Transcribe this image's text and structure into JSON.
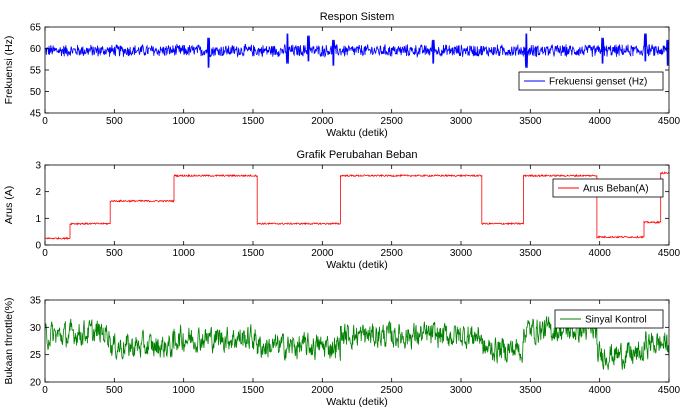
{
  "chart_data": [
    {
      "type": "line",
      "title": "Respon Sistem",
      "xlabel": "Waktu (detik)",
      "ylabel": "Frekuensi (Hz)",
      "xlim": [
        0,
        4500
      ],
      "ylim": [
        45,
        65
      ],
      "xticks": [
        "0",
        "500",
        "1000",
        "1500",
        "2000",
        "2500",
        "3000",
        "3500",
        "4000",
        "4500"
      ],
      "yticks": [
        "45",
        "50",
        "55",
        "60",
        "65"
      ],
      "legend_position": "right",
      "series": [
        {
          "name": "Frekuensi genset (Hz)",
          "color": "#0000ff",
          "style": "noisy",
          "base": 59.5,
          "noise_amplitude": 1.6,
          "spikes": [
            {
              "x": 1180,
              "low": 55.5,
              "high": 62.5
            },
            {
              "x": 1750,
              "low": 56.5,
              "high": 63.5
            },
            {
              "x": 1900,
              "low": 57,
              "high": 63
            },
            {
              "x": 2080,
              "low": 56,
              "high": 62
            },
            {
              "x": 2800,
              "low": 56.5,
              "high": 62
            },
            {
              "x": 3470,
              "low": 55.5,
              "high": 63.5
            },
            {
              "x": 4020,
              "low": 56.5,
              "high": 62.5
            },
            {
              "x": 4330,
              "low": 57,
              "high": 63.5
            },
            {
              "x": 4490,
              "low": 56,
              "high": 62
            }
          ]
        }
      ]
    },
    {
      "type": "line",
      "title": "Grafik Perubahan Beban",
      "xlabel": "Waktu (detik)",
      "ylabel": "Arus (A)",
      "xlim": [
        0,
        4500
      ],
      "ylim": [
        0,
        3
      ],
      "xticks": [
        "0",
        "500",
        "1000",
        "1500",
        "2000",
        "2500",
        "3000",
        "3500",
        "4000",
        "4500"
      ],
      "yticks": [
        "0",
        "1",
        "2",
        "3"
      ],
      "legend_position": "right",
      "series": [
        {
          "name": "Arus Beban(A)",
          "color": "#ff0000",
          "style": "step",
          "noise_amplitude": 0.03,
          "steps": [
            {
              "x0": 0,
              "x1": 180,
              "y": 0.25
            },
            {
              "x0": 180,
              "x1": 470,
              "y": 0.8
            },
            {
              "x0": 470,
              "x1": 930,
              "y": 1.65
            },
            {
              "x0": 930,
              "x1": 1530,
              "y": 2.6
            },
            {
              "x0": 1530,
              "x1": 2130,
              "y": 0.8
            },
            {
              "x0": 2130,
              "x1": 3150,
              "y": 2.6
            },
            {
              "x0": 3150,
              "x1": 3450,
              "y": 0.8
            },
            {
              "x0": 3450,
              "x1": 3980,
              "y": 2.6
            },
            {
              "x0": 3980,
              "x1": 4320,
              "y": 0.3
            },
            {
              "x0": 4320,
              "x1": 4440,
              "y": 0.85
            },
            {
              "x0": 4440,
              "x1": 4500,
              "y": 2.7
            }
          ]
        }
      ]
    },
    {
      "type": "line",
      "title": "",
      "xlabel": "Waktu (detik)",
      "ylabel": "Bukaan throttle(%)",
      "xlim": [
        0,
        4500
      ],
      "ylim": [
        20,
        35
      ],
      "xticks": [
        "0",
        "500",
        "1000",
        "1500",
        "2000",
        "2500",
        "3000",
        "3500",
        "4000",
        "4500"
      ],
      "yticks": [
        "20",
        "25",
        "30",
        "35"
      ],
      "legend_position": "right",
      "series": [
        {
          "name": "Sinyal Kontrol",
          "color": "#008000",
          "style": "noisy-regimes",
          "noise_amplitude": 3.5,
          "regimes": [
            {
              "x0": 0,
              "x1": 180,
              "mean": 28.5
            },
            {
              "x0": 180,
              "x1": 470,
              "mean": 29
            },
            {
              "x0": 470,
              "x1": 930,
              "mean": 26.5
            },
            {
              "x0": 930,
              "x1": 1530,
              "mean": 28
            },
            {
              "x0": 1530,
              "x1": 2130,
              "mean": 26.5
            },
            {
              "x0": 2130,
              "x1": 3150,
              "mean": 28.5
            },
            {
              "x0": 3150,
              "x1": 3450,
              "mean": 26
            },
            {
              "x0": 3450,
              "x1": 3980,
              "mean": 29.5
            },
            {
              "x0": 3980,
              "x1": 4320,
              "mean": 25
            },
            {
              "x0": 4320,
              "x1": 4500,
              "mean": 27
            }
          ]
        }
      ]
    }
  ]
}
